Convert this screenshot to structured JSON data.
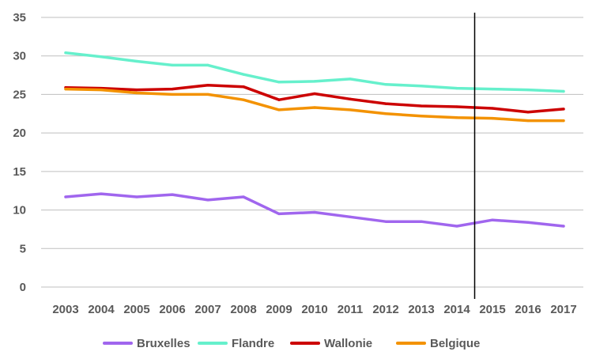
{
  "chart_data": {
    "type": "line",
    "title": "",
    "xlabel": "",
    "ylabel": "",
    "x": [
      "2003",
      "2004",
      "2005",
      "2006",
      "2007",
      "2008",
      "2009",
      "2010",
      "2011",
      "2012",
      "2013",
      "2014",
      "2015",
      "2016",
      "2017"
    ],
    "ylim": [
      0,
      35
    ],
    "yticks": [
      "0",
      "5",
      "10",
      "15",
      "20",
      "25",
      "30",
      "35"
    ],
    "grid": "horizontal",
    "legend_position": "bottom",
    "marker_line_after": "2014",
    "series": [
      {
        "name": "Bruxelles",
        "color": "#a066ee",
        "values": [
          11.7,
          12.1,
          11.7,
          12.0,
          11.3,
          11.7,
          9.5,
          9.7,
          9.1,
          8.5,
          8.5,
          7.9,
          8.7,
          8.4,
          7.9
        ]
      },
      {
        "name": "Flandre",
        "color": "#66f0cc",
        "values": [
          30.4,
          29.9,
          29.3,
          28.8,
          28.8,
          27.6,
          26.6,
          26.7,
          27.0,
          26.3,
          26.1,
          25.8,
          25.7,
          25.6,
          25.4
        ]
      },
      {
        "name": "Wallonie",
        "color": "#cc0000",
        "values": [
          25.9,
          25.8,
          25.6,
          25.7,
          26.2,
          26.0,
          24.3,
          25.1,
          24.4,
          23.8,
          23.5,
          23.4,
          23.2,
          22.7,
          23.1
        ]
      },
      {
        "name": "Belgique",
        "color": "#f39200",
        "values": [
          25.7,
          25.6,
          25.2,
          25.0,
          25.0,
          24.3,
          23.0,
          23.3,
          23.0,
          22.5,
          22.2,
          22.0,
          21.9,
          21.6,
          21.6
        ]
      }
    ]
  }
}
